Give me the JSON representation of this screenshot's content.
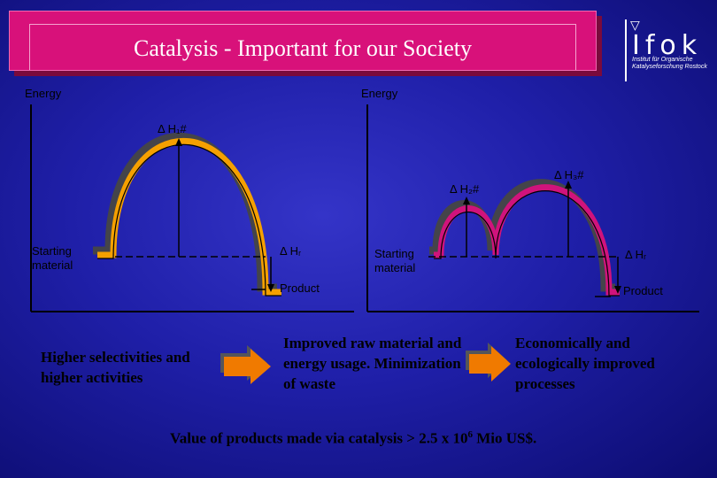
{
  "header": {
    "title": "Catalysis - Important for our Society"
  },
  "logo": {
    "word": "Ifok",
    "subtitle": "Institut für Organische Katalyseforschung Rostock"
  },
  "left_diagram": {
    "y_axis_label": "Energy",
    "barrier_label": "Δ H₁#",
    "start_label": "Starting material",
    "reaction_label": "Δ Hᵣ",
    "product_label": "Product"
  },
  "right_diagram": {
    "y_axis_label": "Energy",
    "barrier2_label": "Δ H₂#",
    "barrier3_label": "Δ H₃#",
    "start_label": "Starting material",
    "reaction_label": "Δ Hᵣ",
    "product_label": "Product"
  },
  "benefits": [
    "Higher selectivities and higher activities",
    "Improved raw material and energy usage. Minimization of waste",
    "Economically and ecologically improved processes"
  ],
  "footer": {
    "value_text": "Value of products made via catalysis > 2.5 x 10",
    "exponent": "6",
    "suffix": " Mio US$."
  },
  "colors": {
    "banner": "#d8117a",
    "curve_orange": "#f5a000",
    "curve_magenta": "#d0137c",
    "arrow": "#f07a00"
  }
}
